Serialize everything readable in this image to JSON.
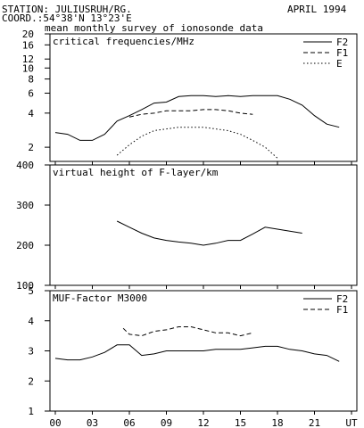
{
  "header": {
    "station": "STATION: JULIUSRUH/RG.",
    "date": "APRIL 1994",
    "coord": "COORD.:54°38'N 13°23'E",
    "subtitle": "mean monthly survey of ionosonde data"
  },
  "colors": {
    "line": "#000000",
    "background": "#ffffff"
  },
  "chart_data": [
    {
      "type": "line",
      "title": "critical frequencies/MHz",
      "yscale": "log",
      "ylim": [
        1.5,
        20
      ],
      "yticks": [
        2,
        4,
        6,
        8,
        10,
        12,
        16,
        20
      ],
      "xlim": [
        0,
        24
      ],
      "legend_position": "top-right",
      "series": [
        {
          "name": "F2",
          "style": "solid",
          "x": [
            0,
            1,
            2,
            3,
            4,
            5,
            6,
            7,
            8,
            9,
            10,
            11,
            12,
            13,
            14,
            15,
            16,
            17,
            18,
            19,
            20,
            21,
            22,
            23
          ],
          "y": [
            2.7,
            2.6,
            2.3,
            2.3,
            2.6,
            3.4,
            3.8,
            4.3,
            4.9,
            5.0,
            5.6,
            5.7,
            5.7,
            5.6,
            5.7,
            5.6,
            5.7,
            5.7,
            5.7,
            5.3,
            4.7,
            3.8,
            3.2,
            3.0
          ]
        },
        {
          "name": "F1",
          "style": "dashed",
          "x": [
            6,
            7,
            8,
            9,
            10,
            11,
            12,
            13,
            14,
            15,
            16
          ],
          "y": [
            3.7,
            3.9,
            4.0,
            4.2,
            4.2,
            4.2,
            4.3,
            4.3,
            4.2,
            4.0,
            3.9
          ]
        },
        {
          "name": "E",
          "style": "dotted",
          "x": [
            5,
            6,
            7,
            8,
            9,
            10,
            11,
            12,
            13,
            14,
            15,
            16,
            17,
            18
          ],
          "y": [
            1.7,
            2.1,
            2.5,
            2.8,
            2.9,
            3.0,
            3.0,
            3.0,
            2.9,
            2.8,
            2.6,
            2.3,
            2.0,
            1.6
          ]
        }
      ]
    },
    {
      "type": "line",
      "title": "virtual height of F-layer/km",
      "ylim": [
        100,
        400
      ],
      "yticks": [
        100,
        200,
        300,
        400
      ],
      "xlim": [
        0,
        24
      ],
      "series": [
        {
          "style": "solid",
          "x": [
            5,
            6,
            7,
            8,
            9,
            10,
            11,
            12,
            13,
            14,
            15,
            16,
            17,
            18,
            19,
            20
          ],
          "y": [
            260,
            245,
            230,
            218,
            212,
            208,
            205,
            200,
            205,
            212,
            212,
            228,
            245,
            240,
            235,
            230
          ]
        }
      ]
    },
    {
      "type": "line",
      "title": "MUF-Factor M3000",
      "ylim": [
        1,
        5
      ],
      "yticks": [
        1,
        2,
        3,
        4,
        5
      ],
      "xlim": [
        0,
        24
      ],
      "xticks": [
        "00",
        "03",
        "06",
        "09",
        "12",
        "15",
        "18",
        "21",
        "UT"
      ],
      "legend_position": "top-right",
      "series": [
        {
          "name": "F2",
          "style": "solid",
          "x": [
            0,
            1,
            2,
            3,
            4,
            5,
            6,
            7,
            8,
            9,
            10,
            11,
            12,
            13,
            14,
            15,
            16,
            17,
            18,
            19,
            20,
            21,
            22,
            23
          ],
          "y": [
            2.75,
            2.7,
            2.7,
            2.8,
            2.95,
            3.2,
            3.2,
            2.85,
            2.9,
            3.0,
            3.0,
            3.0,
            3.0,
            3.05,
            3.05,
            3.05,
            3.1,
            3.15,
            3.15,
            3.05,
            3.0,
            2.9,
            2.85,
            2.65
          ]
        },
        {
          "name": "F1",
          "style": "dashed",
          "x": [
            5.5,
            6,
            7,
            8,
            9,
            10,
            11,
            12,
            13,
            14,
            15,
            16
          ],
          "y": [
            3.75,
            3.55,
            3.5,
            3.65,
            3.7,
            3.8,
            3.8,
            3.7,
            3.6,
            3.6,
            3.5,
            3.6
          ]
        }
      ]
    }
  ]
}
